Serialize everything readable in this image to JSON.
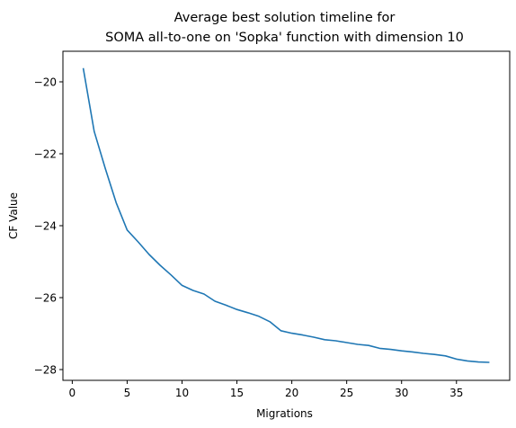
{
  "chart_data": {
    "type": "line",
    "title_lines": [
      "Average best solution timeline for",
      "SOMA all-to-one on 'Sopka' function with dimension 10"
    ],
    "xlabel": "Migrations",
    "ylabel": "CF Value",
    "xlim": [
      -0.85,
      39.85
    ],
    "ylim": [
      -28.3,
      -19.15
    ],
    "xticks": [
      0,
      5,
      10,
      15,
      20,
      25,
      30,
      35
    ],
    "yticks": [
      -28,
      -26,
      -24,
      -22,
      -20
    ],
    "grid": false,
    "line_color": "#1f77b4",
    "series": [
      {
        "x": [
          1,
          2,
          3,
          4,
          5,
          6,
          7,
          8,
          9,
          10,
          11,
          12,
          13,
          14,
          15,
          16,
          17,
          18,
          19,
          20,
          21,
          22,
          23,
          24,
          25,
          26,
          27,
          28,
          29,
          30,
          31,
          32,
          33,
          34,
          35,
          36,
          37,
          38
        ],
        "values": [
          -19.62,
          -21.38,
          -22.4,
          -23.36,
          -24.12,
          -24.45,
          -24.8,
          -25.1,
          -25.37,
          -25.66,
          -25.8,
          -25.9,
          -26.1,
          -26.21,
          -26.33,
          -26.42,
          -26.52,
          -26.67,
          -26.92,
          -26.99,
          -27.04,
          -27.1,
          -27.17,
          -27.2,
          -27.25,
          -27.3,
          -27.33,
          -27.41,
          -27.44,
          -27.48,
          -27.51,
          -27.55,
          -27.58,
          -27.62,
          -27.71,
          -27.76,
          -27.79,
          -27.8
        ]
      }
    ]
  }
}
